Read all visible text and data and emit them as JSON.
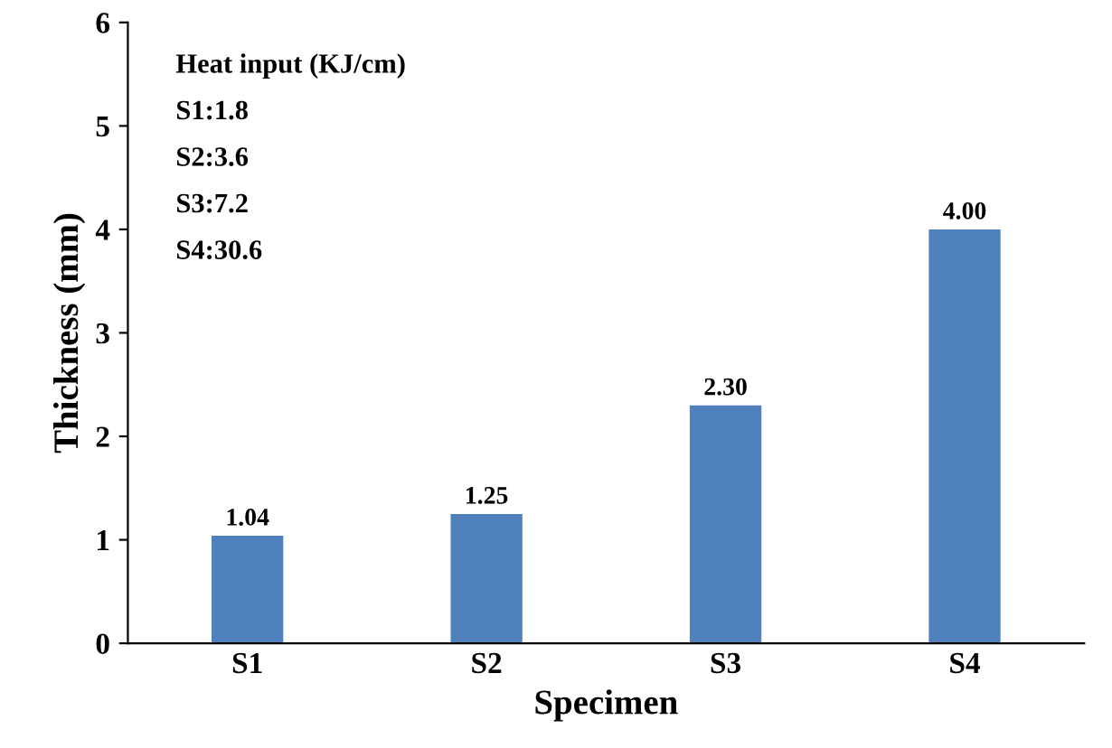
{
  "chart_data": {
    "type": "bar",
    "xlabel": "Specimen",
    "ylabel": "Thickness (mm)",
    "categories": [
      "S1",
      "S2",
      "S3",
      "S4"
    ],
    "series": [
      {
        "color": "#4f81bd",
        "values": [
          1.04,
          1.25,
          2.3,
          4.0
        ],
        "value_labels": [
          "1.04",
          "1.25",
          "2.30",
          "4.00"
        ]
      }
    ],
    "ylim": [
      0,
      6
    ],
    "yticks": [
      0,
      1,
      2,
      3,
      4,
      5,
      6
    ],
    "grid": false,
    "legend": false,
    "annotations": [
      "Heat input (KJ/cm)",
      "S1:1.8",
      "S2:3.6",
      "S3:7.2",
      "S4:30.6"
    ]
  }
}
